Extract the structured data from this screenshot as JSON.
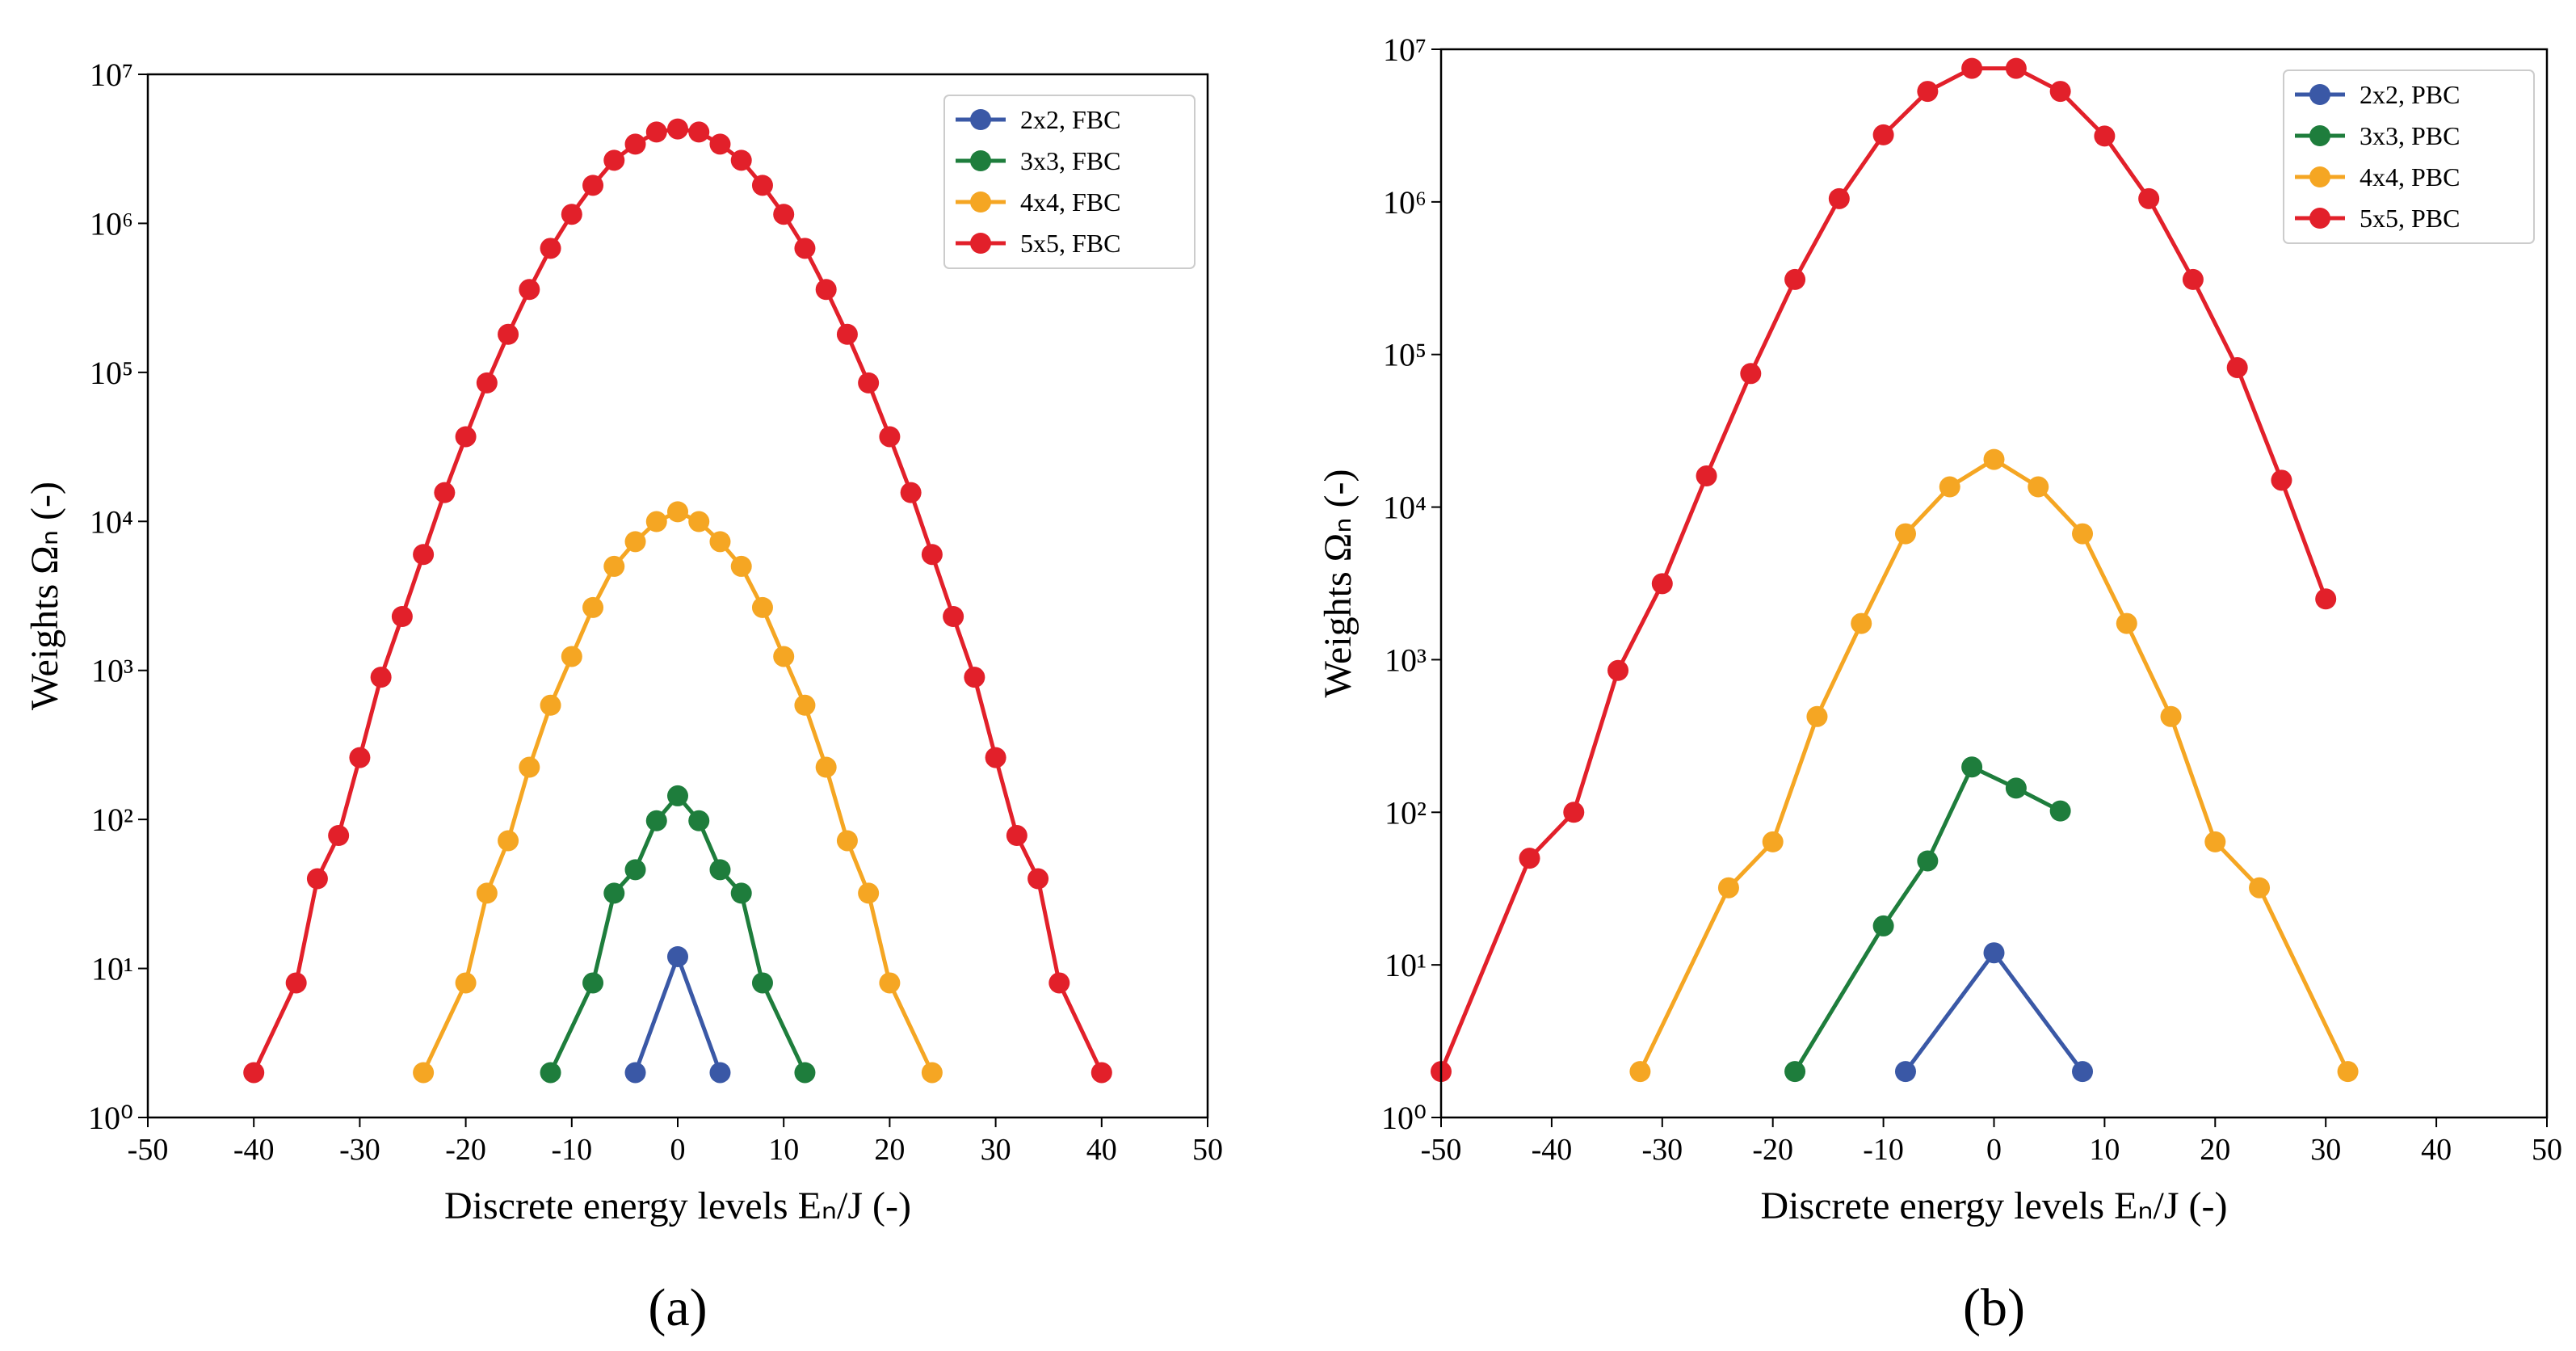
{
  "chart_data": [
    {
      "type": "line",
      "panel_label": "(a)",
      "xlabel": "Discrete energy levels Eₙ/J (-)",
      "ylabel": "Weights Ωₙ (-)",
      "xlim": [
        -50,
        50
      ],
      "xticks": [
        -50,
        -40,
        -30,
        -20,
        -10,
        0,
        10,
        20,
        30,
        40,
        50
      ],
      "ylim": [
        1,
        10000000
      ],
      "yscale": "log",
      "yticks": [
        {
          "value": 1,
          "label": "10⁰"
        },
        {
          "value": 10,
          "label": "10¹"
        },
        {
          "value": 100,
          "label": "10²"
        },
        {
          "value": 1000,
          "label": "10³"
        },
        {
          "value": 10000,
          "label": "10⁴"
        },
        {
          "value": 100000,
          "label": "10⁵"
        },
        {
          "value": 1000000,
          "label": "10⁶"
        },
        {
          "value": 10000000,
          "label": "10⁷"
        }
      ],
      "legend": "upper right",
      "series": [
        {
          "name": "2x2, FBC",
          "color": "#3a58a6",
          "x": [
            -4,
            0,
            4
          ],
          "values": [
            2,
            12,
            2
          ]
        },
        {
          "name": "3x3, FBC",
          "color": "#1e7d3c",
          "x": [
            -12,
            -8,
            -6,
            -4,
            -2,
            0,
            2,
            4,
            6,
            8,
            12
          ],
          "values": [
            2,
            8,
            32,
            46,
            98,
            144,
            98,
            46,
            32,
            8,
            2
          ]
        },
        {
          "name": "4x4, FBC",
          "color": "#f5a623",
          "x": [
            -24,
            -20,
            -18,
            -16,
            -14,
            -12,
            -10,
            -8,
            -6,
            -4,
            -2,
            0,
            2,
            4,
            6,
            8,
            10,
            12,
            14,
            16,
            18,
            20,
            24
          ],
          "values": [
            2,
            8,
            32,
            72,
            224,
            584,
            1240,
            2644,
            4992,
            7312,
            9969,
            11604,
            9969,
            7312,
            4992,
            2644,
            1240,
            584,
            224,
            72,
            32,
            8,
            2
          ]
        },
        {
          "name": "5x5, FBC",
          "color": "#e2202a",
          "x": [
            -40,
            -36,
            -34,
            -32,
            -30,
            -28,
            -26,
            -24,
            -22,
            -20,
            -18,
            -16,
            -14,
            -12,
            -10,
            -8,
            -6,
            -4,
            -2,
            0,
            2,
            4,
            6,
            8,
            10,
            12,
            14,
            16,
            18,
            20,
            22,
            24,
            26,
            28,
            30,
            32,
            34,
            36,
            40
          ],
          "values": [
            2,
            8,
            40,
            78,
            260,
            900,
            2300,
            6000,
            15600,
            37000,
            85000,
            180000,
            360000,
            680000,
            1150000,
            1800000,
            2650000,
            3400000,
            4100000,
            4300000,
            4100000,
            3400000,
            2650000,
            1800000,
            1150000,
            680000,
            360000,
            180000,
            85000,
            37000,
            15600,
            6000,
            2300,
            900,
            260,
            78,
            40,
            8,
            2
          ]
        }
      ]
    },
    {
      "type": "line",
      "panel_label": "(b)",
      "xlabel": "Discrete energy levels Eₙ/J (-)",
      "ylabel": "Weights Ωₙ (-)",
      "xlim": [
        -50,
        50
      ],
      "xticks": [
        -50,
        -40,
        -30,
        -20,
        -10,
        0,
        10,
        20,
        30,
        40,
        50
      ],
      "ylim": [
        1,
        10000000
      ],
      "yscale": "log",
      "yticks": [
        {
          "value": 1,
          "label": "10⁰"
        },
        {
          "value": 10,
          "label": "10¹"
        },
        {
          "value": 100,
          "label": "10²"
        },
        {
          "value": 1000,
          "label": "10³"
        },
        {
          "value": 10000,
          "label": "10⁴"
        },
        {
          "value": 100000,
          "label": "10⁵"
        },
        {
          "value": 1000000,
          "label": "10⁶"
        },
        {
          "value": 10000000,
          "label": "10⁷"
        }
      ],
      "legend": "upper right",
      "series": [
        {
          "name": "2x2, PBC",
          "color": "#3a58a6",
          "x": [
            -8,
            0,
            8
          ],
          "values": [
            2,
            12,
            2
          ]
        },
        {
          "name": "3x3, PBC",
          "color": "#1e7d3c",
          "x": [
            -18,
            -10,
            -6,
            -2,
            2,
            6
          ],
          "values": [
            2,
            18,
            48,
            198,
            144,
            102
          ]
        },
        {
          "name": "4x4, PBC",
          "color": "#f5a623",
          "x": [
            -32,
            -24,
            -20,
            -16,
            -12,
            -8,
            -4,
            0,
            4,
            8,
            12,
            16,
            20,
            24,
            32
          ],
          "values": [
            2,
            32,
            64,
            424,
            1728,
            6688,
            13568,
            20524,
            13568,
            6688,
            1728,
            424,
            64,
            32,
            2
          ]
        },
        {
          "name": "5x5, PBC",
          "color": "#e2202a",
          "x": [
            -50,
            -42,
            -38,
            -34,
            -30,
            -26,
            -22,
            -18,
            -14,
            -10,
            -6,
            -2,
            2,
            6,
            10,
            14,
            18,
            22,
            26,
            30
          ],
          "values": [
            2,
            50,
            100,
            850,
            3150,
            16000,
            75000,
            310000,
            1050000,
            2750000,
            5300000,
            7500000,
            7500000,
            5300000,
            2700000,
            1050000,
            310000,
            82000,
            15000,
            2500
          ]
        }
      ]
    }
  ]
}
